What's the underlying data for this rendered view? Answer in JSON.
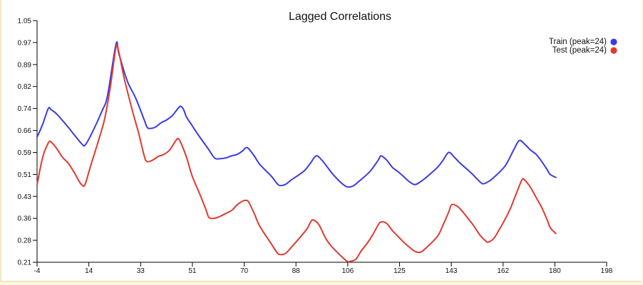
{
  "chart_data": {
    "type": "line",
    "title": "Lagged Correlations",
    "xlabel": "",
    "ylabel": "",
    "xlim": [
      -4,
      198
    ],
    "ylim": [
      0.21,
      1.05
    ],
    "x_ticks": [
      "-4",
      "14",
      "33",
      "51",
      "70",
      "88",
      "106",
      "125",
      "143",
      "162",
      "180",
      "198"
    ],
    "y_ticks": [
      "1.05",
      "0.97",
      "0.89",
      "0.82",
      "0.74",
      "0.66",
      "0.59",
      "0.51",
      "0.43",
      "0.36",
      "0.28",
      "0.21"
    ],
    "legend_position": "top-right",
    "grid": false,
    "series": [
      {
        "name": "Train (peak=24)",
        "color": "#3a3ae8",
        "points": [
          [
            -4,
            0.645
          ],
          [
            -2,
            0.69
          ],
          [
            0,
            0.745
          ],
          [
            1,
            0.74
          ],
          [
            3,
            0.725
          ],
          [
            7,
            0.68
          ],
          [
            9,
            0.655
          ],
          [
            12,
            0.62
          ],
          [
            13,
            0.617
          ],
          [
            15,
            0.65
          ],
          [
            19,
            0.735
          ],
          [
            21,
            0.79
          ],
          [
            24,
            0.968
          ],
          [
            25,
            0.935
          ],
          [
            28,
            0.84
          ],
          [
            31,
            0.78
          ],
          [
            34,
            0.705
          ],
          [
            35,
            0.68
          ],
          [
            36,
            0.675
          ],
          [
            38,
            0.68
          ],
          [
            40,
            0.695
          ],
          [
            42,
            0.705
          ],
          [
            44,
            0.72
          ],
          [
            46,
            0.745
          ],
          [
            47,
            0.752
          ],
          [
            48,
            0.74
          ],
          [
            49,
            0.715
          ],
          [
            51,
            0.685
          ],
          [
            53,
            0.655
          ],
          [
            57,
            0.6
          ],
          [
            59,
            0.572
          ],
          [
            61,
            0.57
          ],
          [
            63,
            0.573
          ],
          [
            65,
            0.58
          ],
          [
            67,
            0.585
          ],
          [
            69,
            0.598
          ],
          [
            70,
            0.608
          ],
          [
            71,
            0.605
          ],
          [
            73,
            0.58
          ],
          [
            75,
            0.55
          ],
          [
            79,
            0.51
          ],
          [
            81,
            0.485
          ],
          [
            82,
            0.477
          ],
          [
            84,
            0.48
          ],
          [
            86,
            0.495
          ],
          [
            89,
            0.515
          ],
          [
            91,
            0.53
          ],
          [
            93,
            0.555
          ],
          [
            95,
            0.58
          ],
          [
            97,
            0.565
          ],
          [
            99,
            0.54
          ],
          [
            101,
            0.515
          ],
          [
            104,
            0.485
          ],
          [
            106,
            0.472
          ],
          [
            108,
            0.475
          ],
          [
            110,
            0.49
          ],
          [
            114,
            0.525
          ],
          [
            117,
            0.565
          ],
          [
            118,
            0.58
          ],
          [
            120,
            0.565
          ],
          [
            122,
            0.54
          ],
          [
            124,
            0.525
          ],
          [
            126,
            0.508
          ],
          [
            128,
            0.49
          ],
          [
            130,
            0.48
          ],
          [
            132,
            0.49
          ],
          [
            134,
            0.505
          ],
          [
            138,
            0.54
          ],
          [
            140,
            0.565
          ],
          [
            142,
            0.592
          ],
          [
            144,
            0.575
          ],
          [
            146,
            0.555
          ],
          [
            150,
            0.52
          ],
          [
            152,
            0.5
          ],
          [
            154,
            0.483
          ],
          [
            156,
            0.49
          ],
          [
            158,
            0.505
          ],
          [
            162,
            0.545
          ],
          [
            165,
            0.6
          ],
          [
            167,
            0.633
          ],
          [
            169,
            0.62
          ],
          [
            171,
            0.6
          ],
          [
            173,
            0.585
          ],
          [
            175,
            0.56
          ],
          [
            177,
            0.53
          ],
          [
            178,
            0.515
          ],
          [
            180,
            0.505
          ]
        ]
      },
      {
        "name": "Test (peak=24)",
        "color": "#e0392e",
        "points": [
          [
            -4,
            0.48
          ],
          [
            -2,
            0.575
          ],
          [
            0,
            0.625
          ],
          [
            1,
            0.628
          ],
          [
            3,
            0.605
          ],
          [
            5,
            0.575
          ],
          [
            7,
            0.555
          ],
          [
            9,
            0.525
          ],
          [
            11,
            0.49
          ],
          [
            12,
            0.478
          ],
          [
            13,
            0.48
          ],
          [
            15,
            0.545
          ],
          [
            18,
            0.64
          ],
          [
            20,
            0.71
          ],
          [
            22,
            0.82
          ],
          [
            24,
            0.958
          ],
          [
            25,
            0.94
          ],
          [
            27,
            0.845
          ],
          [
            30,
            0.73
          ],
          [
            32,
            0.66
          ],
          [
            34,
            0.58
          ],
          [
            35,
            0.56
          ],
          [
            37,
            0.565
          ],
          [
            39,
            0.578
          ],
          [
            41,
            0.585
          ],
          [
            43,
            0.6
          ],
          [
            45,
            0.63
          ],
          [
            46,
            0.64
          ],
          [
            47,
            0.625
          ],
          [
            49,
            0.575
          ],
          [
            51,
            0.51
          ],
          [
            54,
            0.44
          ],
          [
            56,
            0.39
          ],
          [
            57,
            0.365
          ],
          [
            59,
            0.363
          ],
          [
            61,
            0.37
          ],
          [
            63,
            0.38
          ],
          [
            65,
            0.39
          ],
          [
            67,
            0.41
          ],
          [
            69,
            0.423
          ],
          [
            70,
            0.425
          ],
          [
            71,
            0.42
          ],
          [
            73,
            0.38
          ],
          [
            75,
            0.335
          ],
          [
            79,
            0.275
          ],
          [
            81,
            0.245
          ],
          [
            82,
            0.237
          ],
          [
            84,
            0.24
          ],
          [
            86,
            0.26
          ],
          [
            90,
            0.305
          ],
          [
            92,
            0.33
          ],
          [
            93,
            0.35
          ],
          [
            94,
            0.357
          ],
          [
            96,
            0.34
          ],
          [
            98,
            0.3
          ],
          [
            100,
            0.27
          ],
          [
            104,
            0.23
          ],
          [
            106,
            0.213
          ],
          [
            107,
            0.213
          ],
          [
            109,
            0.22
          ],
          [
            111,
            0.25
          ],
          [
            113,
            0.275
          ],
          [
            115,
            0.305
          ],
          [
            117,
            0.34
          ],
          [
            118,
            0.35
          ],
          [
            120,
            0.345
          ],
          [
            122,
            0.32
          ],
          [
            124,
            0.3
          ],
          [
            126,
            0.28
          ],
          [
            128,
            0.263
          ],
          [
            130,
            0.248
          ],
          [
            132,
            0.245
          ],
          [
            134,
            0.26
          ],
          [
            138,
            0.3
          ],
          [
            140,
            0.34
          ],
          [
            142,
            0.385
          ],
          [
            143,
            0.41
          ],
          [
            145,
            0.405
          ],
          [
            147,
            0.385
          ],
          [
            149,
            0.36
          ],
          [
            151,
            0.335
          ],
          [
            153,
            0.305
          ],
          [
            155,
            0.285
          ],
          [
            156,
            0.28
          ],
          [
            158,
            0.293
          ],
          [
            160,
            0.325
          ],
          [
            162,
            0.36
          ],
          [
            164,
            0.4
          ],
          [
            166,
            0.45
          ],
          [
            168,
            0.497
          ],
          [
            169,
            0.495
          ],
          [
            171,
            0.47
          ],
          [
            173,
            0.435
          ],
          [
            175,
            0.4
          ],
          [
            177,
            0.355
          ],
          [
            178,
            0.33
          ],
          [
            180,
            0.31
          ]
        ]
      }
    ]
  }
}
